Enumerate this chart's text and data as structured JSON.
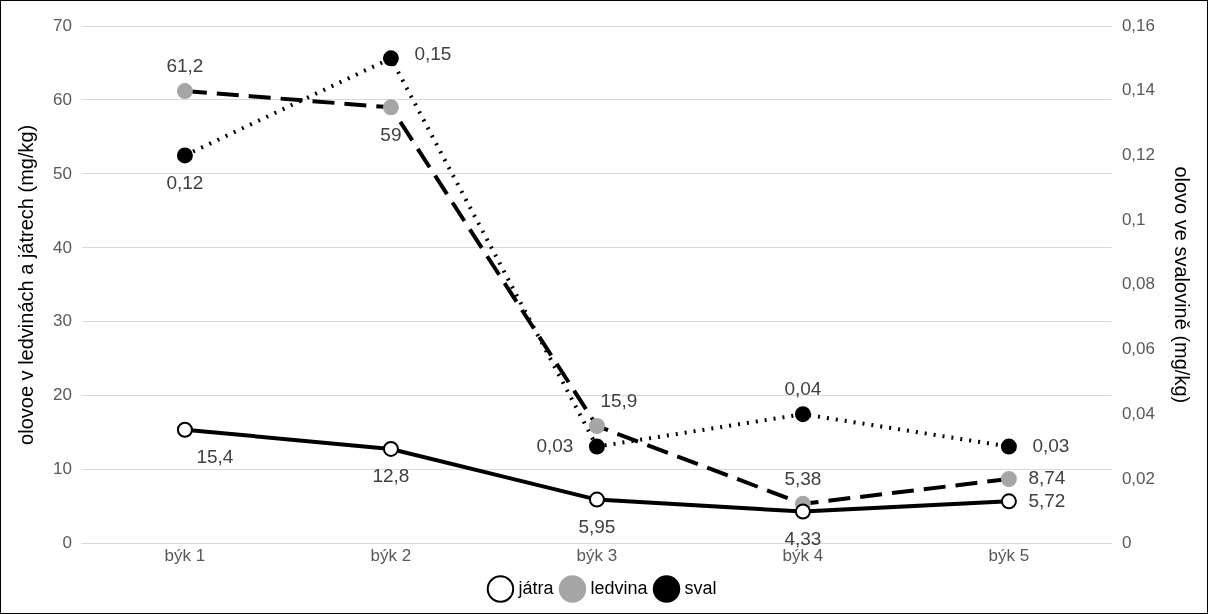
{
  "chart_data": {
    "type": "line",
    "categories": [
      "býk 1",
      "býk 2",
      "býk 3",
      "býk 4",
      "býk 5"
    ],
    "ylabel": "olovoe v ledvinách a játrech (mg/kg)",
    "y2label": "olovo ve svalovině (mg/kg)",
    "ylim": [
      0,
      70
    ],
    "yticks": [
      0,
      10,
      20,
      30,
      40,
      50,
      60,
      70
    ],
    "y2lim": [
      0,
      0.16
    ],
    "y2ticks": [
      0,
      {
        "value": 0.02,
        "label": "0,02"
      },
      {
        "value": 0.04,
        "label": "0,04"
      },
      {
        "value": 0.06,
        "label": "0,06"
      },
      {
        "value": 0.08,
        "label": "0,08"
      },
      {
        "value": 0.1,
        "label": "0,1"
      },
      {
        "value": 0.12,
        "label": "0,12"
      },
      {
        "value": 0.14,
        "label": "0,14"
      },
      {
        "value": 0.16,
        "label": "0,16"
      }
    ],
    "grid": "y",
    "legend": "bottom",
    "marker": "circle",
    "series": [
      {
        "name": "játra",
        "color": "#000000",
        "line_style": "solid",
        "values": [
          15.4,
          12.8,
          5.95,
          4.33,
          5.72
        ],
        "value_labels": [
          "15,4",
          "12,8",
          "5,95",
          "4,33",
          "5,72"
        ]
      },
      {
        "name": "ledvina",
        "color": "#a6a6a6",
        "line_style": "dashed",
        "values": [
          61.2,
          59,
          15.9,
          5.38,
          8.74
        ],
        "value_labels": [
          "61,2",
          "59",
          "15,9",
          "5,38",
          "8,74"
        ]
      },
      {
        "name": "sval",
        "color": "#000000",
        "line_style": "dotted",
        "axis": "y2",
        "values": [
          0.12,
          0.15,
          0.03,
          0.04,
          0.03
        ],
        "value_labels": [
          "0,12",
          "0,15",
          "0,03",
          "0,04",
          "0,03"
        ]
      }
    ]
  }
}
